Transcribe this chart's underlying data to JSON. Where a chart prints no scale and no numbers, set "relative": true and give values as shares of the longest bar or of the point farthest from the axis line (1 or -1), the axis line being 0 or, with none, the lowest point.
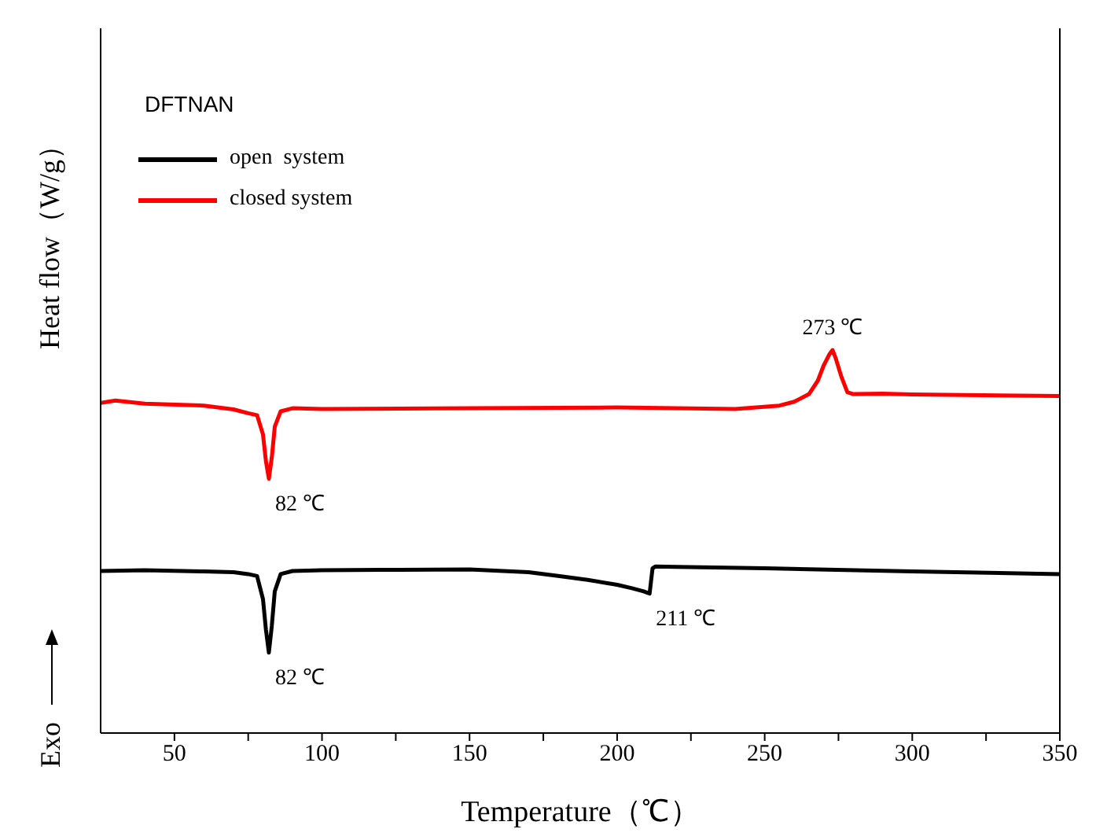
{
  "chart_data": {
    "type": "line",
    "relative": true,
    "xlabel": "Temperature（℃）",
    "ylabel": "Heat flow（W/g）",
    "legend_title": "DFTNAN",
    "legend": "top left",
    "xlim": [
      25,
      350
    ],
    "xticks": [
      50,
      {
        "value": 75,
        "label": null
      },
      100,
      {
        "value": 125,
        "label": null
      },
      150,
      {
        "value": 175,
        "label": null
      },
      200,
      {
        "value": 225,
        "label": null
      },
      250,
      {
        "value": 275,
        "label": null
      },
      300,
      {
        "value": 325,
        "label": null
      },
      350
    ],
    "series": [
      {
        "name": "open  system",
        "color": "#000000",
        "x": [
          25,
          40,
          60,
          70,
          75,
          78,
          80,
          81,
          82,
          83,
          84,
          86,
          90,
          100,
          120,
          150,
          170,
          180,
          190,
          200,
          205,
          209,
          211,
          212,
          213,
          220,
          250,
          300,
          350
        ],
        "values": [
          0.423,
          0.425,
          0.422,
          0.42,
          0.415,
          0.41,
          0.35,
          0.27,
          0.21,
          0.28,
          0.37,
          0.415,
          0.423,
          0.425,
          0.426,
          0.427,
          0.42,
          0.41,
          0.4,
          0.387,
          0.378,
          0.37,
          0.364,
          0.43,
          0.435,
          0.434,
          0.43,
          0.422,
          0.415
        ]
      },
      {
        "name": "closed system",
        "color": "#ff0000",
        "x": [
          25,
          30,
          40,
          60,
          70,
          75,
          78,
          80,
          81,
          82,
          83,
          84,
          86,
          90,
          100,
          150,
          200,
          240,
          255,
          260,
          265,
          268,
          270,
          272,
          273,
          274,
          276,
          278,
          280,
          290,
          300,
          350
        ],
        "values": [
          0.862,
          0.868,
          0.86,
          0.855,
          0.845,
          0.835,
          0.83,
          0.78,
          0.71,
          0.664,
          0.72,
          0.8,
          0.84,
          0.848,
          0.846,
          0.848,
          0.85,
          0.846,
          0.855,
          0.865,
          0.885,
          0.92,
          0.96,
          0.99,
          1,
          0.98,
          0.93,
          0.89,
          0.885,
          0.886,
          0.884,
          0.88
        ]
      }
    ],
    "annotations": [
      {
        "text": "273 ℃",
        "x": 273,
        "y": 1
      },
      {
        "text": "82 ℃",
        "x": 82,
        "y": 0.664
      },
      {
        "text": "82 ℃",
        "x": 82,
        "y": 0.21
      },
      {
        "text": "211 ℃",
        "x": 211,
        "y": 0.364
      },
      "Exo"
    ]
  }
}
